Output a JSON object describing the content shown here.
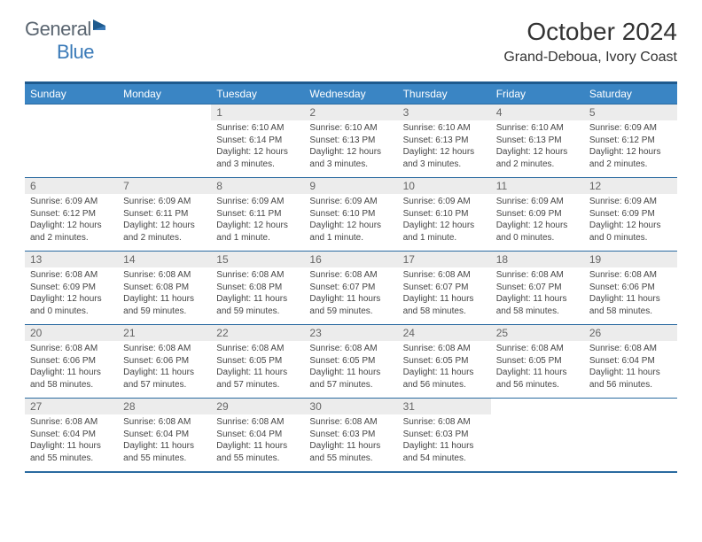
{
  "logo": {
    "general": "General",
    "blue": "Blue"
  },
  "title": "October 2024",
  "location": "Grand-Deboua, Ivory Coast",
  "dayNames": [
    "Sunday",
    "Monday",
    "Tuesday",
    "Wednesday",
    "Thursday",
    "Friday",
    "Saturday"
  ],
  "colors": {
    "header_bar": "#3a85c4",
    "accent_line": "#1e5a8e",
    "daynum_bg": "#ececec",
    "logo_blue": "#3a7ab8",
    "logo_gray": "#5a6570"
  },
  "weeks": [
    {
      "nums": [
        "",
        "",
        "1",
        "2",
        "3",
        "4",
        "5"
      ],
      "cells": [
        "",
        "",
        "Sunrise: 6:10 AM\nSunset: 6:14 PM\nDaylight: 12 hours and 3 minutes.",
        "Sunrise: 6:10 AM\nSunset: 6:13 PM\nDaylight: 12 hours and 3 minutes.",
        "Sunrise: 6:10 AM\nSunset: 6:13 PM\nDaylight: 12 hours and 3 minutes.",
        "Sunrise: 6:10 AM\nSunset: 6:13 PM\nDaylight: 12 hours and 2 minutes.",
        "Sunrise: 6:09 AM\nSunset: 6:12 PM\nDaylight: 12 hours and 2 minutes."
      ]
    },
    {
      "nums": [
        "6",
        "7",
        "8",
        "9",
        "10",
        "11",
        "12"
      ],
      "cells": [
        "Sunrise: 6:09 AM\nSunset: 6:12 PM\nDaylight: 12 hours and 2 minutes.",
        "Sunrise: 6:09 AM\nSunset: 6:11 PM\nDaylight: 12 hours and 2 minutes.",
        "Sunrise: 6:09 AM\nSunset: 6:11 PM\nDaylight: 12 hours and 1 minute.",
        "Sunrise: 6:09 AM\nSunset: 6:10 PM\nDaylight: 12 hours and 1 minute.",
        "Sunrise: 6:09 AM\nSunset: 6:10 PM\nDaylight: 12 hours and 1 minute.",
        "Sunrise: 6:09 AM\nSunset: 6:09 PM\nDaylight: 12 hours and 0 minutes.",
        "Sunrise: 6:09 AM\nSunset: 6:09 PM\nDaylight: 12 hours and 0 minutes."
      ]
    },
    {
      "nums": [
        "13",
        "14",
        "15",
        "16",
        "17",
        "18",
        "19"
      ],
      "cells": [
        "Sunrise: 6:08 AM\nSunset: 6:09 PM\nDaylight: 12 hours and 0 minutes.",
        "Sunrise: 6:08 AM\nSunset: 6:08 PM\nDaylight: 11 hours and 59 minutes.",
        "Sunrise: 6:08 AM\nSunset: 6:08 PM\nDaylight: 11 hours and 59 minutes.",
        "Sunrise: 6:08 AM\nSunset: 6:07 PM\nDaylight: 11 hours and 59 minutes.",
        "Sunrise: 6:08 AM\nSunset: 6:07 PM\nDaylight: 11 hours and 58 minutes.",
        "Sunrise: 6:08 AM\nSunset: 6:07 PM\nDaylight: 11 hours and 58 minutes.",
        "Sunrise: 6:08 AM\nSunset: 6:06 PM\nDaylight: 11 hours and 58 minutes."
      ]
    },
    {
      "nums": [
        "20",
        "21",
        "22",
        "23",
        "24",
        "25",
        "26"
      ],
      "cells": [
        "Sunrise: 6:08 AM\nSunset: 6:06 PM\nDaylight: 11 hours and 58 minutes.",
        "Sunrise: 6:08 AM\nSunset: 6:06 PM\nDaylight: 11 hours and 57 minutes.",
        "Sunrise: 6:08 AM\nSunset: 6:05 PM\nDaylight: 11 hours and 57 minutes.",
        "Sunrise: 6:08 AM\nSunset: 6:05 PM\nDaylight: 11 hours and 57 minutes.",
        "Sunrise: 6:08 AM\nSunset: 6:05 PM\nDaylight: 11 hours and 56 minutes.",
        "Sunrise: 6:08 AM\nSunset: 6:05 PM\nDaylight: 11 hours and 56 minutes.",
        "Sunrise: 6:08 AM\nSunset: 6:04 PM\nDaylight: 11 hours and 56 minutes."
      ]
    },
    {
      "nums": [
        "27",
        "28",
        "29",
        "30",
        "31",
        "",
        ""
      ],
      "cells": [
        "Sunrise: 6:08 AM\nSunset: 6:04 PM\nDaylight: 11 hours and 55 minutes.",
        "Sunrise: 6:08 AM\nSunset: 6:04 PM\nDaylight: 11 hours and 55 minutes.",
        "Sunrise: 6:08 AM\nSunset: 6:04 PM\nDaylight: 11 hours and 55 minutes.",
        "Sunrise: 6:08 AM\nSunset: 6:03 PM\nDaylight: 11 hours and 55 minutes.",
        "Sunrise: 6:08 AM\nSunset: 6:03 PM\nDaylight: 11 hours and 54 minutes.",
        "",
        ""
      ]
    }
  ]
}
